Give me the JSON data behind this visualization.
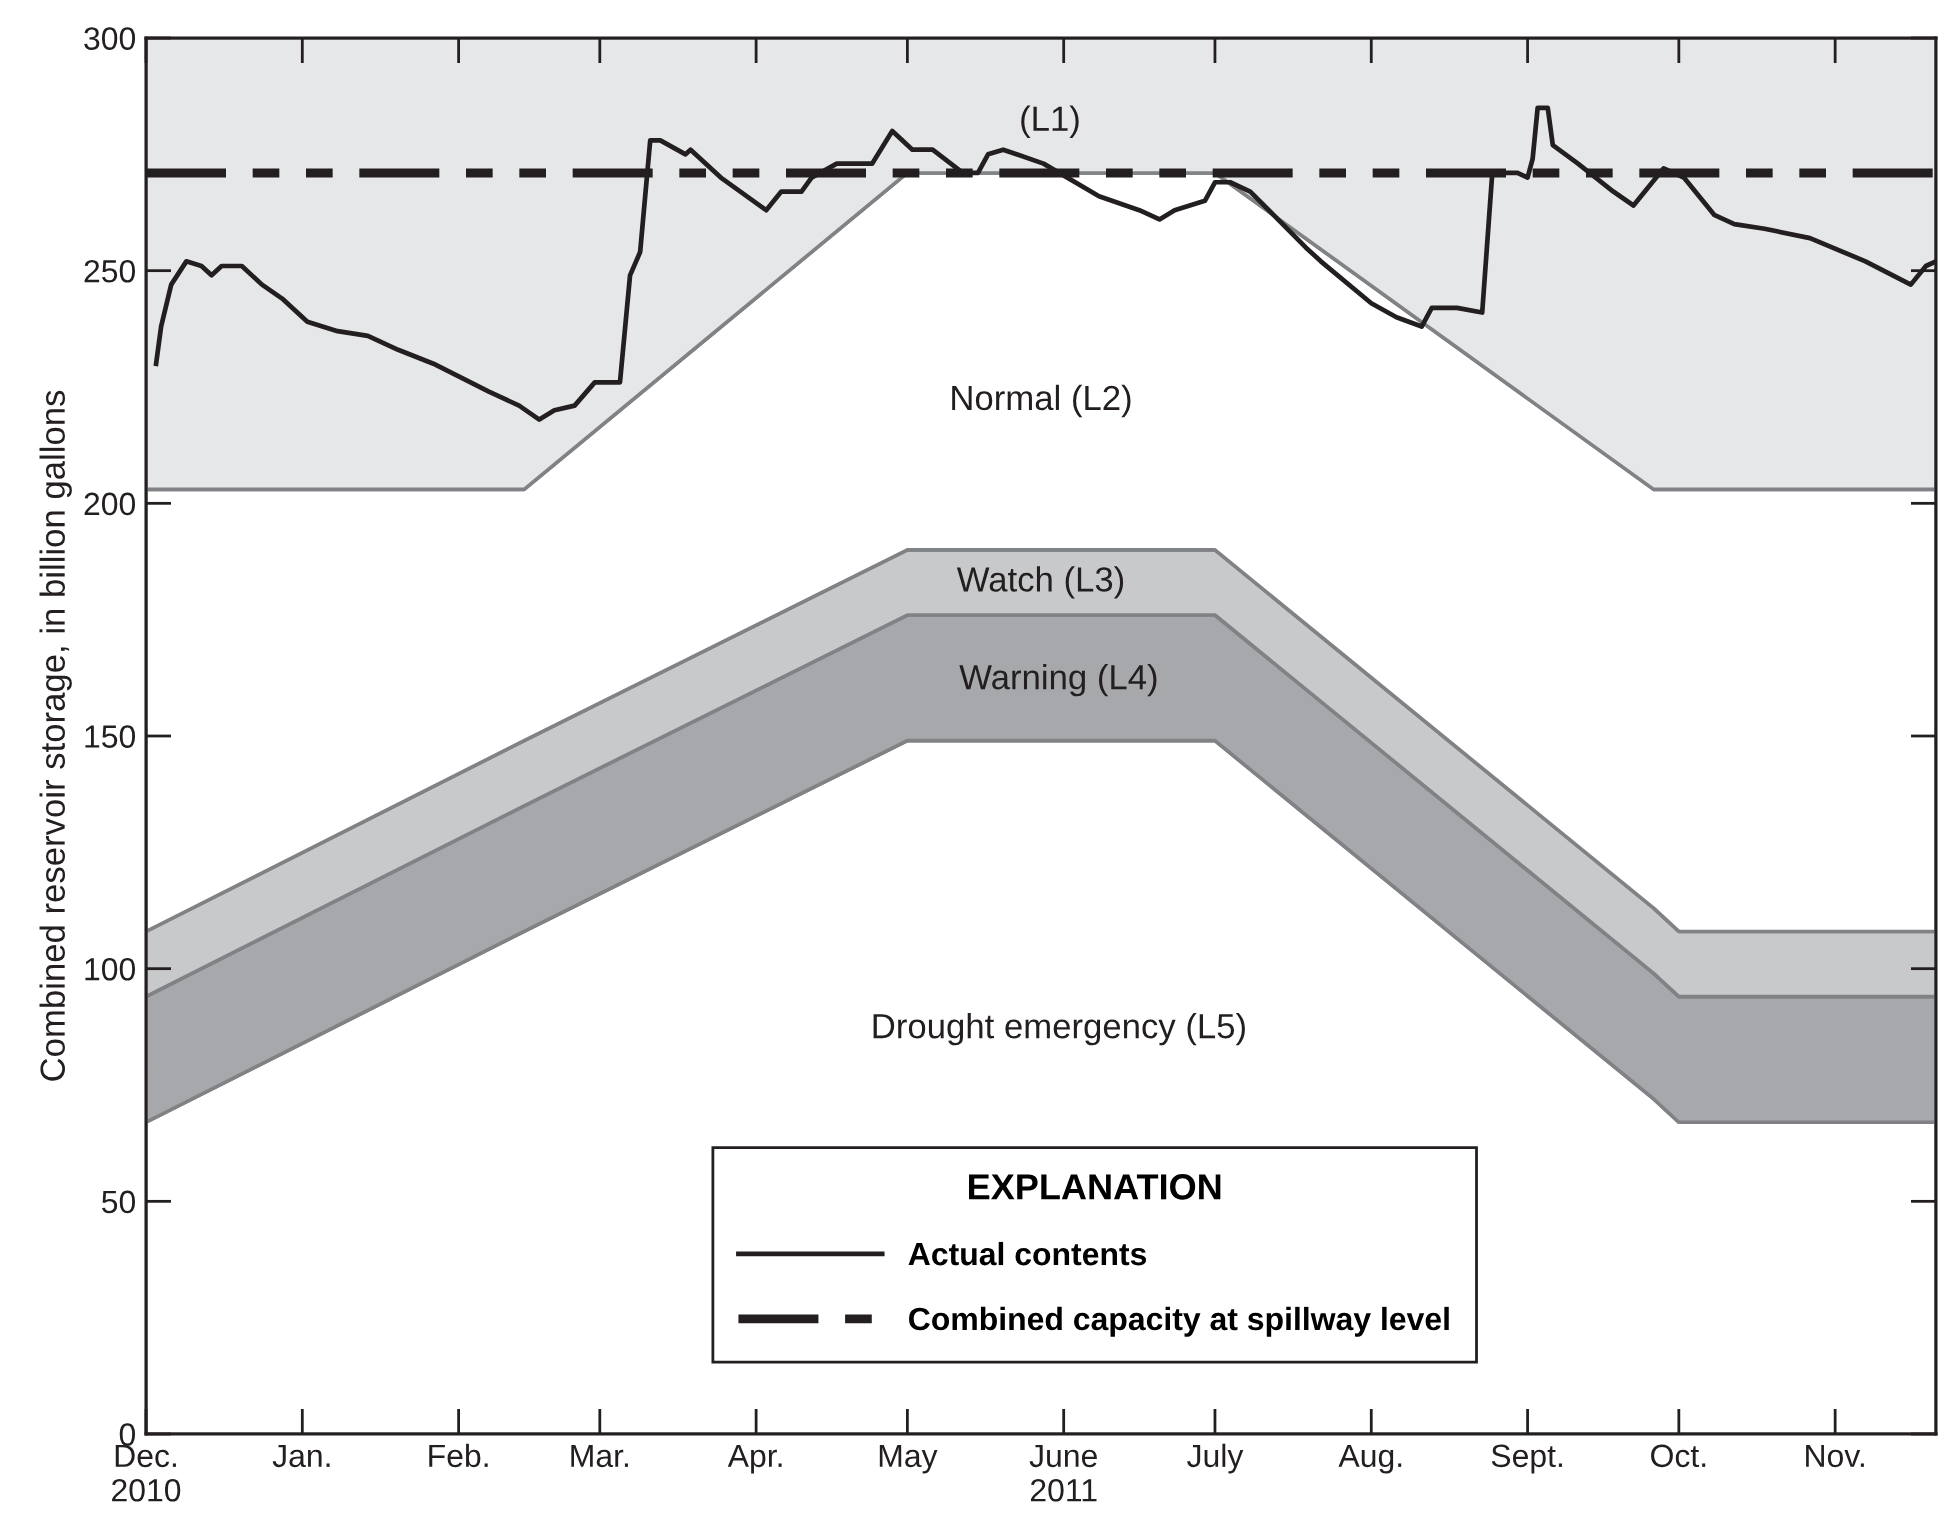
{
  "chart_data": {
    "type": "line",
    "ylabel": "Combined reservoir storage, in billion gallons",
    "xlim": [
      "2010-12-01",
      "2011-11-21"
    ],
    "xticks": [
      {
        "value": "2010-12-01",
        "label": "Dec.\n2010"
      },
      {
        "value": "2011-01-01",
        "label": "Jan."
      },
      {
        "value": "2011-02-01",
        "label": "Feb."
      },
      {
        "value": "2011-03-01",
        "label": "Mar."
      },
      {
        "value": "2011-04-01",
        "label": "Apr."
      },
      {
        "value": "2011-05-01",
        "label": "May"
      },
      {
        "value": "2011-06-01",
        "label": "June\n2011"
      },
      {
        "value": "2011-07-01",
        "label": "July"
      },
      {
        "value": "2011-08-01",
        "label": "Aug."
      },
      {
        "value": "2011-09-01",
        "label": "Sept."
      },
      {
        "value": "2011-10-01",
        "label": "Oct."
      },
      {
        "value": "2011-11-01",
        "label": "Nov."
      }
    ],
    "ylim": [
      0,
      300
    ],
    "yticks": [
      0,
      50,
      100,
      150,
      200,
      250,
      300
    ],
    "grid": false,
    "legend": "bottom",
    "stacked": true,
    "legend_title": "EXPLANATION",
    "series": [
      {
        "type": "area",
        "color": "#ffffff",
        "x": [
          "2010-12-01",
          "2011-02-14",
          "2011-05-01",
          "2011-07-01",
          "2011-09-26",
          "2011-10-01",
          "2011-11-21"
        ],
        "values": [
          67,
          108,
          149,
          149,
          72,
          67,
          67
        ]
      },
      {
        "type": "area",
        "color": "#a7a8ab",
        "x": [
          "2010-12-01",
          "2011-02-14",
          "2011-05-01",
          "2011-07-01",
          "2011-09-26",
          "2011-10-01",
          "2011-11-21"
        ],
        "values": [
          27,
          27,
          27,
          27,
          27,
          27,
          27
        ]
      },
      {
        "type": "area",
        "color": "#c8c9cb",
        "x": [
          "2010-12-01",
          "2011-02-14",
          "2011-05-01",
          "2011-07-01",
          "2011-09-26",
          "2011-10-01",
          "2011-11-21"
        ],
        "values": [
          14,
          14,
          14,
          14,
          14,
          14,
          14
        ]
      },
      {
        "type": "area",
        "color": "#ffffff",
        "x": [
          "2010-12-01",
          "2011-02-14",
          "2011-05-01",
          "2011-07-01",
          "2011-09-26",
          "2011-10-01",
          "2011-11-21"
        ],
        "values": [
          95,
          54,
          81,
          81,
          90,
          95,
          95
        ]
      },
      {
        "type": "area",
        "color": "#e6e7e8",
        "x": [
          "2010-12-01",
          "2011-02-14",
          "2011-05-01",
          "2011-07-01",
          "2011-09-26",
          "2011-10-01",
          "2011-11-21"
        ],
        "values": [
          97,
          97,
          29,
          29,
          97,
          97,
          97
        ]
      },
      {
        "name": "Actual contents",
        "color": "#231f20",
        "x": [
          "2010-12-03",
          "2010-12-04",
          "2010-12-06",
          "2010-12-09",
          "2010-12-12",
          "2010-12-14",
          "2010-12-16",
          "2010-12-20",
          "2010-12-24",
          "2010-12-28",
          "2011-01-02",
          "2011-01-08",
          "2011-01-14",
          "2011-01-20",
          "2011-01-27",
          "2011-02-07",
          "2011-02-13",
          "2011-02-17",
          "2011-02-20",
          "2011-02-24",
          "2011-02-28",
          "2011-03-05",
          "2011-03-07",
          "2011-03-09",
          "2011-03-11",
          "2011-03-13",
          "2011-03-18",
          "2011-03-19",
          "2011-03-25",
          "2011-04-03",
          "2011-04-06",
          "2011-04-10",
          "2011-04-12",
          "2011-04-17",
          "2011-04-21",
          "2011-04-24",
          "2011-04-28",
          "2011-05-02",
          "2011-05-06",
          "2011-05-12",
          "2011-05-15",
          "2011-05-17",
          "2011-05-20",
          "2011-05-28",
          "2011-06-08",
          "2011-06-16",
          "2011-06-20",
          "2011-06-23",
          "2011-06-29",
          "2011-07-01",
          "2011-07-04",
          "2011-07-08",
          "2011-07-19",
          "2011-07-22",
          "2011-08-01",
          "2011-08-06",
          "2011-08-11",
          "2011-08-13",
          "2011-08-18",
          "2011-08-23",
          "2011-08-25",
          "2011-08-30",
          "2011-09-01",
          "2011-09-02",
          "2011-09-03",
          "2011-09-05",
          "2011-09-06",
          "2011-09-11",
          "2011-09-18",
          "2011-09-22",
          "2011-09-28",
          "2011-10-02",
          "2011-10-08",
          "2011-10-12",
          "2011-10-18",
          "2011-10-27",
          "2011-11-07",
          "2011-11-16",
          "2011-11-19",
          "2011-11-21"
        ],
        "values": [
          230,
          238,
          247,
          252,
          251,
          249,
          251,
          251,
          247,
          244,
          239,
          237,
          236,
          233,
          230,
          224,
          221,
          218,
          220,
          221,
          226,
          226,
          249,
          254,
          278,
          278,
          275,
          276,
          270,
          263,
          267,
          267,
          270,
          273,
          273,
          273,
          280,
          276,
          276,
          271,
          271,
          275,
          276,
          273,
          266,
          263,
          261,
          263,
          265,
          269,
          269,
          267,
          255,
          252,
          243,
          240,
          238,
          242,
          242,
          241,
          271,
          271,
          270,
          274,
          285,
          285,
          277,
          273,
          267,
          264,
          272,
          270,
          262,
          260,
          259,
          257,
          252,
          247,
          251,
          252
        ]
      }
    ],
    "ref_lines": [
      {
        "axis": "y",
        "value": 271,
        "label": "Combined capacity at spillway level",
        "color": "#231f20",
        "line_style": "dashed"
      }
    ],
    "annotations": [
      "(L1)",
      "Normal (L2)",
      "Watch (L3)",
      "Warning (L4)",
      "Drought emergency (L5)"
    ]
  }
}
